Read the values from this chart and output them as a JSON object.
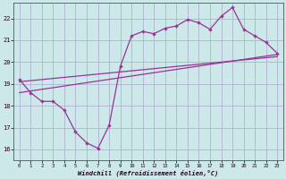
{
  "xlabel": "Windchill (Refroidissement éolien,°C)",
  "bg_color": "#cce8e8",
  "grid_color": "#aaaacc",
  "line_color": "#993399",
  "xlim": [
    -0.5,
    23.5
  ],
  "ylim": [
    15.5,
    22.7
  ],
  "xticks": [
    0,
    1,
    2,
    3,
    4,
    5,
    6,
    7,
    8,
    9,
    10,
    11,
    12,
    13,
    14,
    15,
    16,
    17,
    18,
    19,
    20,
    21,
    22,
    23
  ],
  "yticks": [
    16,
    17,
    18,
    19,
    20,
    21,
    22
  ],
  "line1_x": [
    0,
    1,
    2,
    3,
    4,
    5,
    6,
    7,
    8,
    9,
    10,
    11,
    12,
    13,
    14,
    15,
    16,
    17,
    18,
    19,
    20,
    21,
    22,
    23
  ],
  "line1_y": [
    19.2,
    18.6,
    18.2,
    18.2,
    17.8,
    16.8,
    16.3,
    16.05,
    17.1,
    19.8,
    21.2,
    21.4,
    21.3,
    21.55,
    21.65,
    21.95,
    21.8,
    21.5,
    22.1,
    22.5,
    21.5,
    21.2,
    20.9,
    20.4
  ],
  "line2_x": [
    0,
    23
  ],
  "line2_y": [
    18.6,
    20.35
  ],
  "line3_x": [
    0,
    23
  ],
  "line3_y": [
    19.1,
    20.25
  ]
}
